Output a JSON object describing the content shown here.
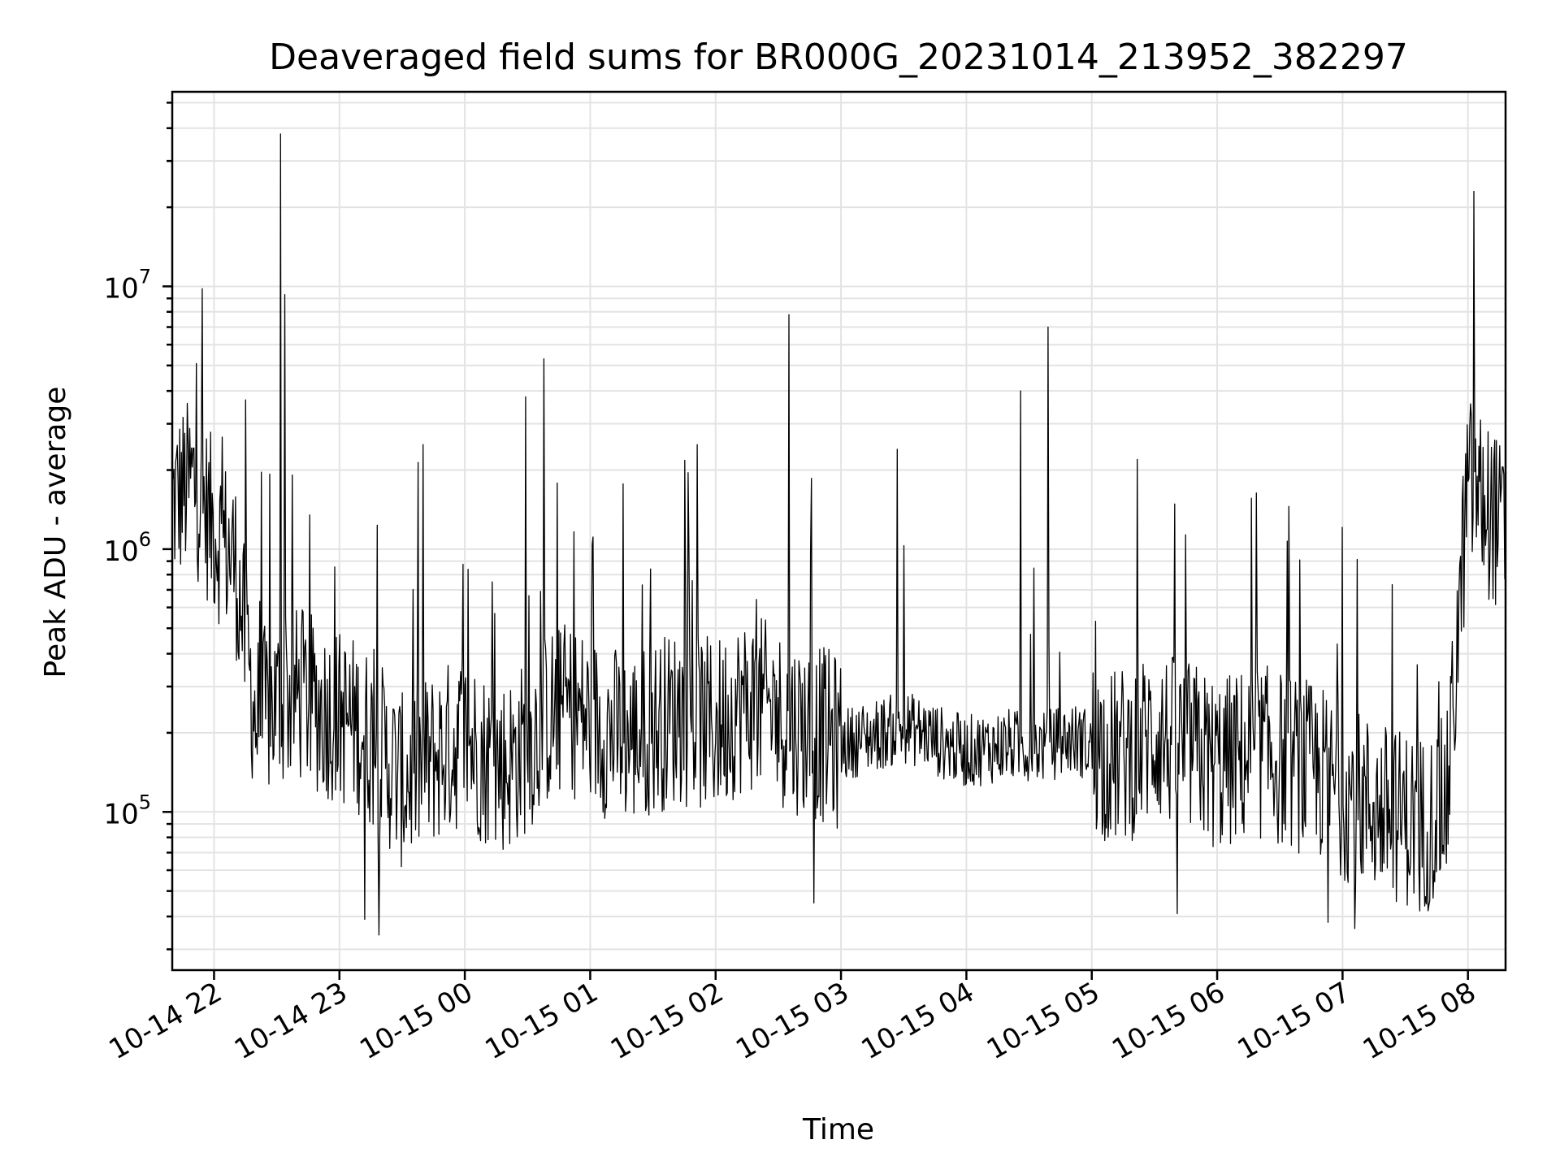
{
  "chart_data": {
    "type": "line",
    "title": "Deaveraged field sums for BR000G_20231014_213952_382297",
    "xlabel": "Time",
    "ylabel": "Peak ADU - average",
    "yscale": "log",
    "ylim": [
      25000,
      55000000
    ],
    "xlim": [
      "2023-10-14 21:40",
      "2023-10-15 08:18"
    ],
    "x_ticks": [
      "10-14 22",
      "10-14 23",
      "10-15 00",
      "10-15 01",
      "10-15 02",
      "10-15 03",
      "10-15 04",
      "10-15 05",
      "10-15 06",
      "10-15 07",
      "10-15 08"
    ],
    "y_ticks": [
      {
        "base": "10",
        "exp": "5",
        "value": 100000
      },
      {
        "base": "10",
        "exp": "6",
        "value": 1000000
      },
      {
        "base": "10",
        "exp": "7",
        "value": 10000000
      }
    ],
    "grid": true,
    "line_color": "#000000",
    "series": [
      {
        "x": [
          "2023-10-14 21:40",
          "2023-10-14 21:50",
          "2023-10-14 22:00",
          "2023-10-14 22:10",
          "2023-10-14 22:20",
          "2023-10-14 22:30",
          "2023-10-14 22:40",
          "2023-10-14 22:50",
          "2023-10-14 23:00",
          "2023-10-14 23:10",
          "2023-10-14 23:20",
          "2023-10-14 23:30",
          "2023-10-14 23:40",
          "2023-10-14 23:50",
          "2023-10-15 00:00",
          "2023-10-15 00:10",
          "2023-10-15 00:20",
          "2023-10-15 00:30",
          "2023-10-15 00:40",
          "2023-10-15 00:50",
          "2023-10-15 01:00",
          "2023-10-15 01:10",
          "2023-10-15 01:20",
          "2023-10-15 01:30",
          "2023-10-15 01:40",
          "2023-10-15 01:50",
          "2023-10-15 02:00",
          "2023-10-15 02:10",
          "2023-10-15 02:20",
          "2023-10-15 02:30",
          "2023-10-15 02:40",
          "2023-10-15 02:50",
          "2023-10-15 03:00",
          "2023-10-15 03:10",
          "2023-10-15 03:20",
          "2023-10-15 03:30",
          "2023-10-15 03:40",
          "2023-10-15 03:50",
          "2023-10-15 04:00",
          "2023-10-15 04:10",
          "2023-10-15 04:20",
          "2023-10-15 04:30",
          "2023-10-15 04:40",
          "2023-10-15 04:50",
          "2023-10-15 05:00",
          "2023-10-15 05:10",
          "2023-10-15 05:20",
          "2023-10-15 05:30",
          "2023-10-15 05:40",
          "2023-10-15 05:50",
          "2023-10-15 06:00",
          "2023-10-15 06:10",
          "2023-10-15 06:20",
          "2023-10-15 06:30",
          "2023-10-15 06:40",
          "2023-10-15 06:50",
          "2023-10-15 07:00",
          "2023-10-15 07:10",
          "2023-10-15 07:20",
          "2023-10-15 07:30",
          "2023-10-15 07:40",
          "2023-10-15 07:50",
          "2023-10-15 08:00",
          "2023-10-15 08:10",
          "2023-10-15 08:18"
        ],
        "y": [
          1500000,
          1800000,
          1200000,
          900000,
          220000,
          260000,
          280000,
          250000,
          230000,
          210000,
          170000,
          130000,
          150000,
          170000,
          190000,
          160000,
          150000,
          180000,
          230000,
          250000,
          220000,
          200000,
          190000,
          210000,
          230000,
          220000,
          210000,
          250000,
          260000,
          230000,
          210000,
          200000,
          180000,
          190000,
          200000,
          210000,
          200000,
          180000,
          170000,
          175000,
          180000,
          175000,
          180000,
          190000,
          180000,
          160000,
          170000,
          200000,
          180000,
          170000,
          150000,
          160000,
          170000,
          160000,
          150000,
          140000,
          120000,
          110000,
          100000,
          95000,
          90000,
          110000,
          1800000,
          1400000,
          1100000
        ]
      }
    ],
    "spikes": [
      {
        "x": "2023-10-14 22:15",
        "y": 3700000
      },
      {
        "x": "2023-10-14 22:32",
        "y": 38000000
      },
      {
        "x": "2023-10-14 22:34",
        "y": 9300000
      },
      {
        "x": "2023-10-14 23:40",
        "y": 2500000
      },
      {
        "x": "2023-10-15 00:29",
        "y": 3800000
      },
      {
        "x": "2023-10-15 00:38",
        "y": 5300000
      },
      {
        "x": "2023-10-15 02:35",
        "y": 7800000
      },
      {
        "x": "2023-10-15 03:27",
        "y": 2400000
      },
      {
        "x": "2023-10-15 04:26",
        "y": 4000000
      },
      {
        "x": "2023-10-15 04:39",
        "y": 7000000
      },
      {
        "x": "2023-10-15 08:03",
        "y": 23000000
      },
      {
        "x": "2023-10-15 08:13",
        "y": 2600000
      }
    ],
    "dips": [
      {
        "x": "2023-10-14 23:12",
        "y": 39000
      },
      {
        "x": "2023-10-14 23:19",
        "y": 34000
      },
      {
        "x": "2023-10-15 02:47",
        "y": 45000
      },
      {
        "x": "2023-10-15 05:41",
        "y": 41000
      },
      {
        "x": "2023-10-15 06:53",
        "y": 38000
      },
      {
        "x": "2023-10-15 07:06",
        "y": 36000
      },
      {
        "x": "2023-10-15 07:37",
        "y": 42000
      }
    ]
  }
}
